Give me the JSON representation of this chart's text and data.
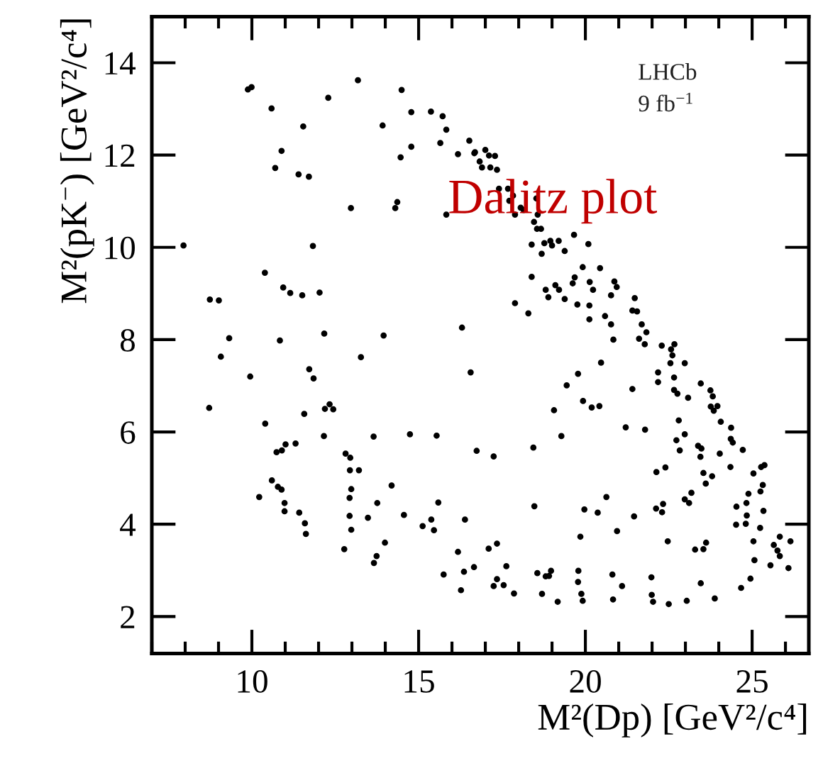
{
  "chart_data": {
    "type": "scatter",
    "xlabel": "M²(Dp) [GeV²/c⁴]",
    "ylabel": "M²(pK$^{−}$) [GeV²/c⁴]",
    "annotations": [
      "LHCb",
      "9 fb$^{−1}$",
      "Dalitz plot"
    ],
    "xlim": [
      7,
      26.7
    ],
    "ylim": [
      1.2,
      15
    ],
    "xticks": [
      10,
      15,
      20,
      25
    ],
    "yticks": [
      2,
      4,
      6,
      8,
      10,
      12,
      14
    ],
    "grid": false,
    "marker": "circle",
    "series": [
      {
        "color": "#000000",
        "x": [
          9.88,
          9.99,
          13.18,
          10.59,
          12.29,
          14.49,
          11.54,
          13.92,
          14.78,
          15.37,
          15.72,
          15.83,
          10.89,
          10.7,
          11.4,
          11.71,
          14.46,
          14.78,
          15.65,
          16.18,
          16.52,
          16.67,
          16.83,
          12.97,
          14.3,
          14.36,
          15.83,
          7.95,
          11.83,
          10.39,
          10.94,
          11.15,
          11.51,
          12.03,
          8.74,
          9.01,
          9.32,
          10.84,
          12.17,
          13.95,
          16.3,
          16.69,
          17.0,
          17.11,
          17.29,
          16.9,
          17.15,
          17.35,
          17.41,
          17.68,
          17.83,
          17.72,
          18.06,
          18.15,
          17.89,
          18.53,
          18.57,
          18.46,
          18.67,
          18.55,
          18.39,
          18.77,
          18.95,
          19.0,
          19.2,
          18.69,
          19.38,
          19.66,
          20.09,
          18.39,
          18.81,
          19.1,
          19.21,
          18.89,
          19.38,
          19.62,
          19.68,
          19.92,
          20.13,
          20.23,
          20.44,
          20.87,
          20.94,
          20.77,
          19.76,
          20.12,
          20.12,
          20.59,
          20.77,
          20.84,
          17.89,
          18.29,
          21.48,
          21.41,
          21.55,
          21.69,
          21.83,
          21.61,
          21.78,
          22.29,
          22.67,
          22.57,
          8.72,
          9.07,
          9.95,
          10.4,
          13.27,
          11.72,
          11.85,
          11.57,
          12.19,
          12.33,
          12.44,
          12.16,
          13.65,
          14.74,
          15.54,
          16.56,
          16.74,
          10.74,
          10.9,
          11.01,
          11.31,
          10.6,
          10.78,
          10.89,
          10.22,
          10.98,
          10.98,
          11.42,
          11.59,
          11.62,
          12.81,
          12.95,
          12.94,
          13.21,
          12.98,
          12.93,
          12.93,
          12.98,
          12.77,
          13.48,
          13.76,
          14.19,
          13.99,
          13.74,
          13.66,
          14.56,
          15.12,
          15.38,
          15.46,
          15.59,
          16.39,
          16.18,
          16.36,
          16.66,
          15.75,
          16.27,
          17.25,
          18.44,
          18.47,
          19.28,
          19.06,
          19.44,
          19.78,
          19.93,
          20.19,
          20.42,
          20.47,
          22.61,
          22.55,
          22.98,
          22.18,
          22.18,
          22.66,
          22.66,
          22.76,
          23.08,
          21.41,
          21.21,
          21.79,
          22.8,
          22.98,
          22.73,
          22.83,
          23.38,
          23.48,
          23.46,
          23.75,
          23.82,
          23.76,
          23.85,
          23.96,
          24.06,
          24.37,
          24.36,
          24.42,
          24.72,
          24.03,
          23.45,
          23.54,
          23.8,
          23.61,
          24.35,
          22.4,
          22.13,
          23.18,
          22.98,
          23.11,
          22.12,
          22.33,
          22.3,
          21.46,
          20.63,
          20.37,
          19.97,
          20.95,
          19.85,
          22.47,
          23.29,
          23.54,
          23.62,
          25.37,
          25.27,
          25.04,
          25.25,
          25.32,
          24.89,
          24.83,
          24.53,
          24.84,
          25.34,
          24.52,
          24.81,
          25.24,
          25.04,
          25.83,
          25.65,
          25.76,
          25.83,
          26.15,
          25.07,
          25.55,
          26.09,
          24.95,
          24.67,
          23.88,
          23.46,
          23.04,
          22.5,
          22.03,
          21.99,
          21.98,
          21.1,
          20.81,
          20.83,
          19.92,
          19.88,
          19.78,
          19.79,
          19.17,
          18.7,
          18.97,
          18.91,
          18.81,
          18.56,
          17.86,
          17.63,
          17.55,
          17.35,
          17.25,
          17.35,
          17.1
        ],
        "values": [
          13.42,
          13.47,
          13.62,
          13.01,
          13.24,
          13.41,
          12.62,
          12.64,
          12.93,
          12.94,
          12.84,
          12.55,
          12.09,
          11.72,
          11.58,
          11.53,
          11.95,
          12.18,
          12.26,
          12.02,
          12.31,
          12.04,
          11.86,
          10.85,
          10.85,
          10.98,
          10.71,
          10.04,
          10.03,
          9.45,
          9.13,
          9.01,
          8.96,
          9.02,
          8.87,
          8.85,
          8.03,
          7.98,
          8.13,
          8.09,
          8.26,
          12.06,
          12.11,
          11.99,
          11.98,
          11.73,
          11.73,
          11.68,
          11.27,
          11.27,
          11.12,
          11.01,
          10.86,
          10.81,
          10.71,
          11.06,
          10.71,
          10.55,
          10.4,
          10.4,
          10.06,
          10.09,
          10.14,
          10.04,
          10.14,
          9.86,
          9.92,
          10.27,
          10.07,
          9.36,
          9.08,
          9.18,
          9.08,
          8.92,
          8.88,
          9.22,
          9.35,
          9.57,
          9.25,
          9.08,
          9.55,
          9.26,
          9.14,
          8.96,
          8.76,
          8.74,
          8.44,
          8.51,
          8.33,
          8.0,
          8.79,
          8.57,
          8.9,
          8.63,
          8.61,
          8.33,
          8.16,
          8.02,
          7.9,
          7.87,
          7.9,
          7.79,
          6.52,
          7.63,
          7.2,
          6.18,
          7.62,
          7.36,
          7.16,
          6.39,
          6.5,
          6.6,
          6.49,
          5.91,
          5.9,
          5.95,
          5.92,
          7.29,
          5.59,
          5.56,
          5.6,
          5.73,
          5.75,
          4.95,
          4.81,
          4.75,
          4.59,
          4.46,
          4.28,
          4.25,
          4.02,
          3.79,
          5.53,
          5.44,
          5.17,
          5.17,
          4.76,
          4.57,
          4.18,
          3.88,
          3.46,
          4.14,
          4.46,
          4.84,
          3.6,
          3.31,
          3.16,
          4.2,
          3.96,
          4.1,
          3.87,
          4.47,
          4.1,
          3.4,
          2.97,
          3.07,
          2.91,
          2.57,
          5.47,
          5.66,
          4.39,
          5.91,
          6.47,
          7.01,
          7.26,
          6.67,
          6.53,
          6.56,
          7.5,
          7.66,
          7.49,
          7.49,
          7.29,
          7.08,
          7.18,
          6.91,
          6.83,
          6.74,
          6.93,
          6.1,
          6.05,
          6.25,
          5.95,
          5.82,
          5.6,
          5.7,
          5.64,
          7.05,
          6.9,
          6.77,
          6.55,
          6.46,
          6.56,
          6.22,
          6.09,
          5.85,
          5.77,
          5.61,
          5.53,
          5.46,
          5.11,
          5.04,
          4.88,
          5.24,
          5.23,
          5.13,
          4.68,
          4.54,
          4.46,
          4.34,
          4.44,
          4.26,
          4.17,
          4.59,
          4.25,
          4.32,
          3.85,
          3.73,
          3.63,
          3.45,
          3.46,
          3.6,
          5.28,
          5.24,
          5.1,
          4.71,
          4.85,
          4.66,
          4.46,
          4.38,
          4.19,
          4.29,
          3.99,
          4.01,
          3.92,
          3.63,
          3.73,
          3.55,
          3.43,
          3.31,
          3.63,
          3.22,
          3.11,
          3.05,
          2.82,
          2.62,
          2.39,
          2.72,
          2.34,
          2.27,
          2.32,
          2.47,
          2.85,
          2.66,
          2.91,
          2.37,
          2.34,
          2.49,
          2.75,
          2.99,
          2.32,
          2.49,
          2.99,
          2.88,
          2.87,
          2.94,
          2.5,
          3.09,
          2.68,
          2.81,
          2.66,
          3.58,
          3.47
        ]
      }
    ]
  }
}
